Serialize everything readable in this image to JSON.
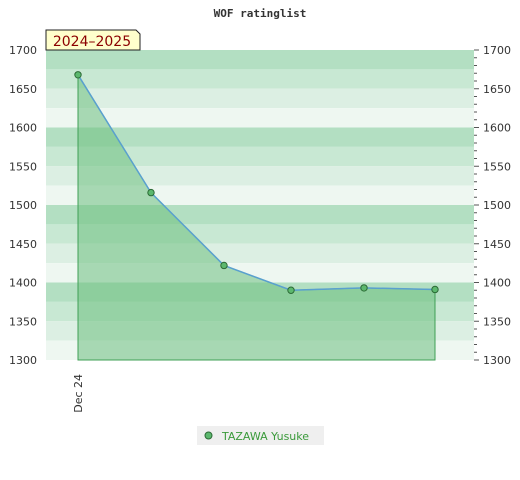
{
  "chart_data": {
    "type": "area",
    "title": "WOF ratinglist",
    "season_badge": "2024–2025",
    "xlabel": "",
    "ylabel": "",
    "ylim": [
      1300,
      1700
    ],
    "y_ticks": [
      1300,
      1350,
      1400,
      1450,
      1500,
      1550,
      1600,
      1650,
      1700
    ],
    "x_tick_labels": [
      "Dec 24"
    ],
    "series": [
      {
        "name": "TAZAWA Yusuke",
        "values": [
          1668,
          1516,
          1422,
          1390,
          1393,
          1391
        ]
      }
    ],
    "legend": "bottom-center",
    "grid": true,
    "colors": {
      "band_dark": "#b3dfc2",
      "band_mid": "#c8e8d3",
      "band_light": "#dcefe3",
      "band_lightest": "#eef7f1",
      "area_fill": "#6dbf80",
      "line": "#5aa0cf",
      "marker_fill": "#5cb86e",
      "marker_stroke": "#2b6a35",
      "badge_fill": "#ffffcc",
      "legend_text": "#3a9a3a"
    }
  }
}
